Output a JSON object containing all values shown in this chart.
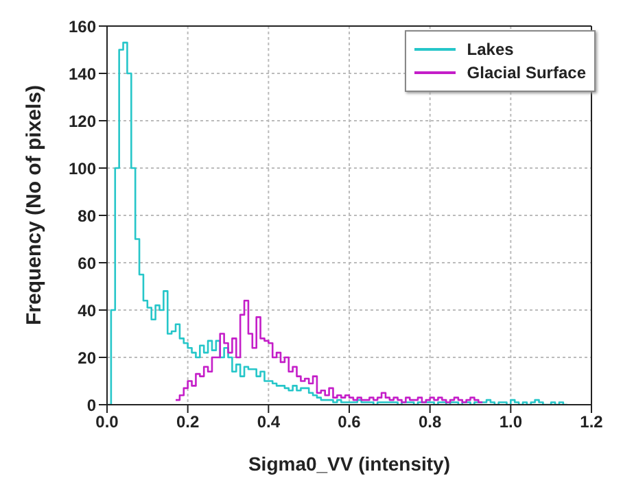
{
  "chart_data": {
    "type": "histogram",
    "xlabel": "Sigma0_VV (intensity)",
    "ylabel": "Frequency (No of pixels)",
    "bins": [
      0,
      0.01,
      0.02,
      0.03,
      0.04,
      0.05,
      0.06,
      0.07,
      0.08,
      0.09,
      0.1,
      0.11,
      0.12,
      0.13,
      0.14,
      0.15,
      0.16,
      0.17,
      0.18,
      0.19,
      0.2,
      0.21,
      0.22,
      0.23,
      0.24,
      0.25,
      0.26,
      0.27,
      0.28,
      0.29,
      0.3,
      0.31,
      0.32,
      0.33,
      0.34,
      0.35,
      0.36,
      0.37,
      0.38,
      0.39,
      0.4,
      0.41,
      0.42,
      0.43,
      0.44,
      0.45,
      0.46,
      0.47,
      0.48,
      0.49,
      0.5,
      0.51,
      0.52,
      0.53,
      0.54,
      0.55,
      0.56,
      0.57,
      0.58,
      0.59,
      0.6,
      0.61,
      0.62,
      0.63,
      0.64,
      0.65,
      0.66,
      0.67,
      0.68,
      0.69,
      0.7,
      0.71,
      0.72,
      0.73,
      0.74,
      0.75,
      0.76,
      0.77,
      0.78,
      0.79,
      0.8,
      0.81,
      0.82,
      0.83,
      0.84,
      0.85,
      0.86,
      0.87,
      0.88,
      0.89,
      0.9,
      0.91,
      0.92,
      0.93,
      0.94,
      0.95,
      0.96,
      0.97,
      0.98,
      0.99,
      1,
      1.01,
      1.02,
      1.03,
      1.04,
      1.05,
      1.06,
      1.07,
      1.08,
      1.09,
      1.1,
      1.11,
      1.12,
      1.13,
      1.14
    ],
    "series": [
      {
        "name": "Lakes",
        "color": "#26c6c9",
        "values": [
          0,
          40,
          100,
          150,
          153,
          140,
          100,
          70,
          55,
          44,
          41,
          36,
          42,
          40,
          48,
          30,
          31,
          34,
          28,
          26,
          24,
          22,
          20,
          25,
          22,
          27,
          23,
          27,
          20,
          24,
          20,
          14,
          17,
          12,
          16,
          15,
          15,
          12,
          14,
          10,
          10,
          9,
          8,
          8,
          7,
          6,
          8,
          6,
          7,
          7,
          5,
          4,
          3,
          2,
          2,
          2,
          1,
          2,
          1,
          1,
          1,
          1,
          2,
          1,
          1,
          1,
          0,
          1,
          1,
          1,
          1,
          1,
          0,
          1,
          1,
          1,
          0,
          1,
          1,
          1,
          1,
          0,
          1,
          1,
          0,
          1,
          1,
          0,
          1,
          1,
          0,
          1,
          1,
          1,
          2,
          1,
          0,
          1,
          1,
          0,
          2,
          1,
          0,
          1,
          0,
          1,
          2,
          1,
          0,
          0,
          1,
          0,
          1,
          0
        ]
      },
      {
        "name": "Glacial Surface",
        "color": "#c41ec8",
        "bins": [
          0.17,
          0.18,
          0.19,
          0.2,
          0.21,
          0.22,
          0.23,
          0.24,
          0.25,
          0.26,
          0.27,
          0.28,
          0.29,
          0.3,
          0.31,
          0.32,
          0.33,
          0.34,
          0.35,
          0.36,
          0.37,
          0.38,
          0.39,
          0.4,
          0.41,
          0.42,
          0.43,
          0.44,
          0.45,
          0.46,
          0.47,
          0.48,
          0.49,
          0.5,
          0.51,
          0.52,
          0.53,
          0.54,
          0.55,
          0.56,
          0.57,
          0.58,
          0.59,
          0.6,
          0.61,
          0.62,
          0.63,
          0.64,
          0.65,
          0.66,
          0.67,
          0.68,
          0.69,
          0.7,
          0.71,
          0.72,
          0.73,
          0.74,
          0.75,
          0.76,
          0.77,
          0.78,
          0.79,
          0.8,
          0.81,
          0.82,
          0.83,
          0.84,
          0.85,
          0.86,
          0.87,
          0.88,
          0.89,
          0.9,
          0.91,
          0.92,
          0.93
        ],
        "values": [
          2,
          4,
          7,
          10,
          8,
          13,
          12,
          16,
          14,
          20,
          20,
          30,
          26,
          22,
          28,
          20,
          38,
          44,
          30,
          24,
          37,
          28,
          27,
          26,
          20,
          22,
          18,
          20,
          14,
          16,
          12,
          10,
          11,
          9,
          12,
          5,
          6,
          4,
          7,
          3,
          4,
          3,
          4,
          3,
          2,
          3,
          2,
          2,
          3,
          2,
          3,
          5,
          3,
          2,
          3,
          2,
          1,
          3,
          2,
          2,
          3,
          1,
          2,
          3,
          2,
          3,
          2,
          1,
          2,
          3,
          2,
          1,
          2,
          3,
          2,
          1
        ]
      }
    ],
    "xlim": [
      0,
      1.2
    ],
    "xticks": [
      {
        "value": 0,
        "label": "0.0"
      },
      0.2,
      0.4,
      0.6,
      0.8,
      {
        "value": 1,
        "label": "1.0"
      },
      1.2
    ],
    "ylim": [
      0,
      160
    ],
    "yticks": [
      0,
      20,
      40,
      60,
      80,
      100,
      120,
      140,
      160
    ],
    "grid": true,
    "legend": "top right"
  }
}
